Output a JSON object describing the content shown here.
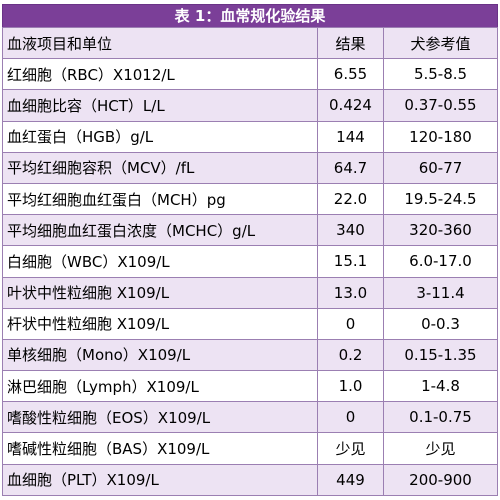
{
  "table": {
    "title": "表 1：血常规化验结果",
    "headers": [
      "血液项目和单位",
      "结果",
      "犬参考值"
    ],
    "rows": [
      {
        "item": "红细胞（RBC）X1012/L",
        "result": "6.55",
        "reference": "5.5-8.5"
      },
      {
        "item": "血细胞比容（HCT）L/L",
        "result": "0.424",
        "reference": "0.37-0.55"
      },
      {
        "item": "血红蛋白（HGB）g/L",
        "result": "144",
        "reference": "120-180"
      },
      {
        "item": "平均红细胞容积（MCV）/fL",
        "result": "64.7",
        "reference": "60-77"
      },
      {
        "item": "平均红细胞血红蛋白（MCH）pg",
        "result": "22.0",
        "reference": "19.5-24.5"
      },
      {
        "item": "平均细胞血红蛋白浓度（MCHC）g/L",
        "result": "340",
        "reference": "320-360"
      },
      {
        "item": "白细胞（WBC）X109/L",
        "result": "15.1",
        "reference": "6.0-17.0"
      },
      {
        "item": "叶状中性粒细胞 X109/L",
        "result": "13.0",
        "reference": "3-11.4"
      },
      {
        "item": "杆状中性粒细胞 X109/L",
        "result": "0",
        "reference": "0-0.3"
      },
      {
        "item": "单核细胞（Mono）X109/L",
        "result": "0.2",
        "reference": "0.15-1.35"
      },
      {
        "item": "淋巴细胞（Lymph）X109/L",
        "result": "1.0",
        "reference": "1-4.8"
      },
      {
        "item": "嗜酸性粒细胞（EOS）X109/L",
        "result": "0",
        "reference": "0.1-0.75"
      },
      {
        "item": "嗜碱性粒细胞（BAS）X109/L",
        "result": "少见",
        "reference": "少见"
      },
      {
        "item": "血细胞（PLT）X109/L",
        "result": "449",
        "reference": "200-900"
      }
    ]
  },
  "colors": {
    "header_bg": "#7b3f98",
    "header_text": "#ffffff",
    "stripe_bg": "#ede3f3",
    "border": "#9b7fb2"
  }
}
